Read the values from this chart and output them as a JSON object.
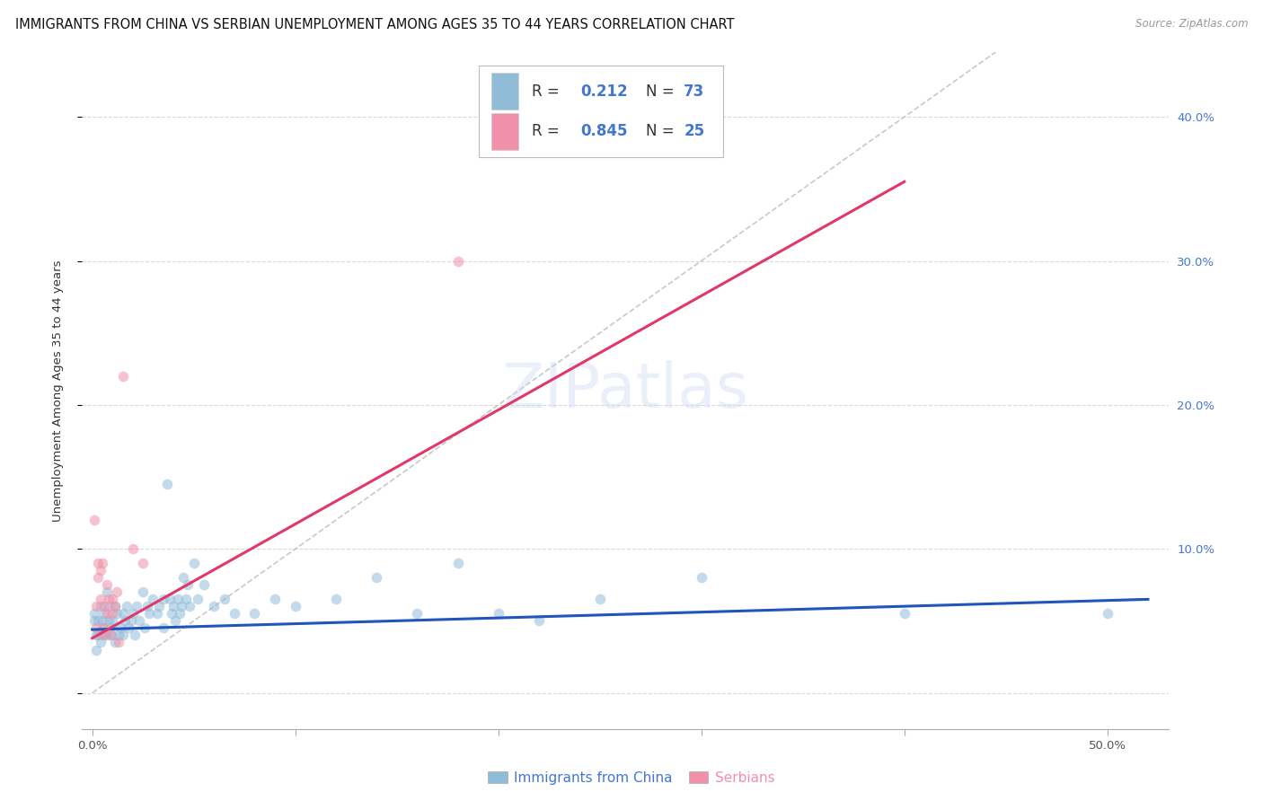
{
  "title": "IMMIGRANTS FROM CHINA VS SERBIAN UNEMPLOYMENT AMONG AGES 35 TO 44 YEARS CORRELATION CHART",
  "source": "Source: ZipAtlas.com",
  "ylabel_left": "Unemployment Among Ages 35 to 44 years",
  "x_ticks": [
    0.0,
    0.1,
    0.2,
    0.3,
    0.4,
    0.5
  ],
  "x_tick_labels": [
    "0.0%",
    "",
    "",
    "",
    "",
    "50.0%"
  ],
  "y_ticks": [
    0.0,
    0.1,
    0.2,
    0.3,
    0.4
  ],
  "y_tick_labels": [
    "",
    "10.0%",
    "20.0%",
    "30.0%",
    "40.0%"
  ],
  "xlim": [
    -0.005,
    0.53
  ],
  "ylim": [
    -0.025,
    0.445
  ],
  "china_scatter": [
    [
      0.001,
      0.055
    ],
    [
      0.001,
      0.05
    ],
    [
      0.002,
      0.04
    ],
    [
      0.002,
      0.03
    ],
    [
      0.003,
      0.05
    ],
    [
      0.003,
      0.04
    ],
    [
      0.004,
      0.06
    ],
    [
      0.004,
      0.035
    ],
    [
      0.005,
      0.05
    ],
    [
      0.005,
      0.045
    ],
    [
      0.006,
      0.04
    ],
    [
      0.006,
      0.055
    ],
    [
      0.007,
      0.07
    ],
    [
      0.007,
      0.04
    ],
    [
      0.008,
      0.05
    ],
    [
      0.008,
      0.06
    ],
    [
      0.009,
      0.045
    ],
    [
      0.01,
      0.05
    ],
    [
      0.01,
      0.04
    ],
    [
      0.011,
      0.06
    ],
    [
      0.011,
      0.035
    ],
    [
      0.012,
      0.055
    ],
    [
      0.013,
      0.04
    ],
    [
      0.014,
      0.045
    ],
    [
      0.015,
      0.055
    ],
    [
      0.015,
      0.04
    ],
    [
      0.016,
      0.05
    ],
    [
      0.017,
      0.06
    ],
    [
      0.018,
      0.045
    ],
    [
      0.019,
      0.05
    ],
    [
      0.02,
      0.055
    ],
    [
      0.021,
      0.04
    ],
    [
      0.022,
      0.06
    ],
    [
      0.023,
      0.05
    ],
    [
      0.025,
      0.07
    ],
    [
      0.026,
      0.045
    ],
    [
      0.027,
      0.06
    ],
    [
      0.028,
      0.055
    ],
    [
      0.03,
      0.065
    ],
    [
      0.032,
      0.055
    ],
    [
      0.033,
      0.06
    ],
    [
      0.035,
      0.045
    ],
    [
      0.035,
      0.065
    ],
    [
      0.037,
      0.145
    ],
    [
      0.038,
      0.065
    ],
    [
      0.039,
      0.055
    ],
    [
      0.04,
      0.06
    ],
    [
      0.041,
      0.05
    ],
    [
      0.042,
      0.065
    ],
    [
      0.043,
      0.055
    ],
    [
      0.044,
      0.06
    ],
    [
      0.045,
      0.08
    ],
    [
      0.046,
      0.065
    ],
    [
      0.047,
      0.075
    ],
    [
      0.048,
      0.06
    ],
    [
      0.05,
      0.09
    ],
    [
      0.052,
      0.065
    ],
    [
      0.055,
      0.075
    ],
    [
      0.06,
      0.06
    ],
    [
      0.065,
      0.065
    ],
    [
      0.07,
      0.055
    ],
    [
      0.08,
      0.055
    ],
    [
      0.09,
      0.065
    ],
    [
      0.1,
      0.06
    ],
    [
      0.12,
      0.065
    ],
    [
      0.14,
      0.08
    ],
    [
      0.16,
      0.055
    ],
    [
      0.18,
      0.09
    ],
    [
      0.2,
      0.055
    ],
    [
      0.22,
      0.05
    ],
    [
      0.25,
      0.065
    ],
    [
      0.3,
      0.08
    ],
    [
      0.4,
      0.055
    ],
    [
      0.5,
      0.055
    ]
  ],
  "serbian_scatter": [
    [
      0.001,
      0.12
    ],
    [
      0.002,
      0.06
    ],
    [
      0.002,
      0.045
    ],
    [
      0.003,
      0.09
    ],
    [
      0.003,
      0.08
    ],
    [
      0.004,
      0.085
    ],
    [
      0.004,
      0.065
    ],
    [
      0.005,
      0.09
    ],
    [
      0.005,
      0.04
    ],
    [
      0.006,
      0.045
    ],
    [
      0.006,
      0.06
    ],
    [
      0.007,
      0.075
    ],
    [
      0.007,
      0.055
    ],
    [
      0.008,
      0.065
    ],
    [
      0.009,
      0.04
    ],
    [
      0.01,
      0.065
    ],
    [
      0.01,
      0.055
    ],
    [
      0.011,
      0.06
    ],
    [
      0.012,
      0.07
    ],
    [
      0.013,
      0.035
    ],
    [
      0.015,
      0.22
    ],
    [
      0.02,
      0.1
    ],
    [
      0.025,
      0.09
    ],
    [
      0.18,
      0.3
    ]
  ],
  "china_line": {
    "x0": 0.0,
    "x1": 0.52,
    "y0": 0.044,
    "y1": 0.065
  },
  "serbian_line": {
    "x0": 0.0,
    "x1": 0.4,
    "y0": 0.038,
    "y1": 0.355
  },
  "diagonal_line": {
    "x0": 0.0,
    "x1": 0.445,
    "y0": 0.0,
    "y1": 0.445
  },
  "bg_color": "#ffffff",
  "china_scatter_color": "#90bcd8",
  "serbian_scatter_color": "#f090aa",
  "china_line_color": "#2055bb",
  "serbian_line_color": "#e03868",
  "diagonal_color": "#bbbbbb",
  "grid_color": "#d5d5d5",
  "right_axis_color": "#4477cc",
  "scatter_size": 70,
  "scatter_alpha": 0.55,
  "title_fontsize": 10.5,
  "axis_fontsize": 9.5,
  "tick_fontsize": 9.5,
  "legend_r_val_color": "#4477cc",
  "legend_n_val_color": "#4477cc",
  "legend_serb_val_color": "#4477cc",
  "legend_text_color": "#333333"
}
